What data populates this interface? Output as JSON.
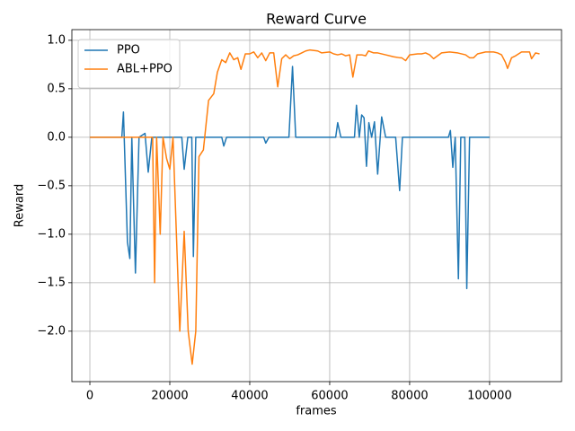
{
  "chart_data": {
    "type": "line",
    "title": "Reward Curve",
    "x_label": "frames",
    "y_label": "Reward",
    "xlim": [
      -4500,
      118000
    ],
    "xticks": [
      0,
      20000,
      40000,
      60000,
      80000,
      100000
    ],
    "ylim": [
      -2.52,
      1.11
    ],
    "yticks": [
      {
        "value": -2.0,
        "label": "−2.0"
      },
      {
        "value": -1.5,
        "label": "−1.5"
      },
      {
        "value": -1.0,
        "label": "−1.0"
      },
      {
        "value": -0.5,
        "label": "−0.5"
      },
      {
        "value": 0.0,
        "label": "0.0"
      },
      {
        "value": 0.5,
        "label": "0.5"
      },
      {
        "value": 1.0,
        "label": "1.0"
      }
    ],
    "grid": true,
    "legend": "upper left",
    "series": [
      {
        "name": "PPO",
        "color": "#1f77b4",
        "x": [
          0,
          8000,
          8400,
          9400,
          10000,
          10500,
          11400,
          12300,
          13800,
          14600,
          15500,
          23000,
          23600,
          24500,
          25500,
          25900,
          26500,
          33000,
          33500,
          34200,
          43500,
          44000,
          44800,
          49800,
          50700,
          51500,
          61500,
          62000,
          62800,
          66200,
          66700,
          67400,
          68000,
          68600,
          69200,
          69800,
          70500,
          71200,
          72000,
          73000,
          74000,
          76500,
          77500,
          78200,
          89700,
          90200,
          90800,
          91400,
          92200,
          92800,
          93800,
          94300,
          95000,
          100000
        ],
        "values": [
          0,
          0,
          0.26,
          -1.08,
          -1.25,
          0,
          -1.4,
          0,
          0.04,
          -0.36,
          0,
          0,
          -0.33,
          0,
          0,
          -1.23,
          0,
          0,
          -0.09,
          0,
          0,
          -0.06,
          0,
          0,
          0.73,
          0,
          0,
          0.15,
          0,
          0,
          0.33,
          0,
          0.23,
          0.2,
          -0.3,
          0.15,
          0,
          0.16,
          -0.38,
          0.21,
          0,
          0,
          -0.55,
          0,
          0,
          0.07,
          -0.31,
          0,
          -1.46,
          0,
          0,
          -1.56,
          0,
          0
        ]
      },
      {
        "name": "ABL+PPO",
        "color": "#ff7f0e",
        "x": [
          0,
          15000,
          15700,
          16200,
          16700,
          17600,
          18300,
          19200,
          20000,
          20800,
          22500,
          23600,
          24600,
          25600,
          26500,
          27300,
          28400,
          29700,
          31000,
          31900,
          33000,
          34000,
          35000,
          36000,
          37000,
          37800,
          38900,
          40000,
          41000,
          42000,
          43000,
          44000,
          45000,
          46000,
          47000,
          48000,
          49000,
          50000,
          51000,
          52000,
          53000,
          54000,
          55000,
          57000,
          58000,
          60000,
          61000,
          62000,
          63000,
          64000,
          65000,
          65800,
          66800,
          68000,
          69000,
          69700,
          71000,
          72000,
          74000,
          76000,
          77500,
          78000,
          79000,
          80000,
          82000,
          83000,
          84000,
          85000,
          86000,
          87000,
          88000,
          90000,
          92000,
          94000,
          95000,
          96000,
          97000,
          99000,
          101000,
          102000,
          103000,
          104000,
          104500,
          105500,
          106500,
          108000,
          110000,
          110500,
          111500,
          112500
        ],
        "values": [
          0,
          0,
          0,
          -1.5,
          0,
          -1.0,
          0,
          -0.22,
          -0.33,
          0,
          -2.0,
          -0.97,
          -2.0,
          -2.34,
          -2.0,
          -0.2,
          -0.13,
          0.38,
          0.45,
          0.67,
          0.8,
          0.77,
          0.87,
          0.8,
          0.82,
          0.7,
          0.86,
          0.86,
          0.88,
          0.82,
          0.87,
          0.79,
          0.87,
          0.87,
          0.52,
          0.81,
          0.85,
          0.81,
          0.84,
          0.85,
          0.87,
          0.89,
          0.9,
          0.89,
          0.87,
          0.88,
          0.86,
          0.85,
          0.86,
          0.84,
          0.85,
          0.62,
          0.85,
          0.85,
          0.84,
          0.89,
          0.87,
          0.87,
          0.85,
          0.83,
          0.82,
          0.82,
          0.79,
          0.85,
          0.86,
          0.86,
          0.87,
          0.85,
          0.81,
          0.84,
          0.87,
          0.88,
          0.87,
          0.85,
          0.82,
          0.82,
          0.86,
          0.88,
          0.88,
          0.87,
          0.85,
          0.77,
          0.71,
          0.82,
          0.84,
          0.88,
          0.88,
          0.81,
          0.87,
          0.86
        ]
      }
    ]
  }
}
